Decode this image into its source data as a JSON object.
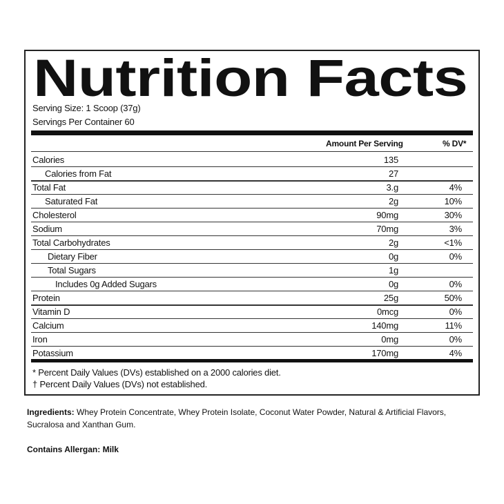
{
  "label": {
    "title": "Nutrition Facts",
    "serving_size": "Serving Size: 1 Scoop (37g)",
    "servings_per_container": "Servings Per Container 60",
    "columns": [
      "Amount Per Serving",
      "% DV*"
    ],
    "rows": [
      {
        "name": "Calories",
        "amount": "135"
      },
      {
        "name": "Calories from Fat",
        "amount": "27"
      },
      {
        "name": "Total Fat",
        "amount": "3.g",
        "dv": "4%"
      },
      {
        "name": "Saturated Fat",
        "amount": "2g",
        "dv": "10%"
      },
      {
        "name": "Cholesterol",
        "amount": "90mg",
        "dv": "30%"
      },
      {
        "name": "Sodium",
        "amount": "70mg",
        "dv": "3%"
      },
      {
        "name": "Total Carbohydrates",
        "amount": "2g",
        "dv": "<1%"
      },
      {
        "name": "Dietary Fiber",
        "amount": "0g",
        "dv": "0%"
      },
      {
        "name": "Total Sugars",
        "amount": "1g"
      },
      {
        "name": "Includes 0g Added Sugars",
        "amount": "0g",
        "dv": "0%"
      },
      {
        "name": "Protein",
        "amount": "25g",
        "dv": "50%"
      },
      {
        "name": "Vitamin D",
        "amount": "0mcg",
        "dv": "0%"
      },
      {
        "name": "Calcium",
        "amount": "140mg",
        "dv": "11%"
      },
      {
        "name": "Iron",
        "amount": "0mg",
        "dv": "0%"
      },
      {
        "name": "Potassium",
        "amount": "170mg",
        "dv": "4%"
      }
    ],
    "footnotes": [
      "* Percent Daily Values (DVs) established on a 2000 calories diet.",
      "† Percent Daily Values (DVs) not established."
    ]
  },
  "ingredients": {
    "label": "Ingredients:",
    "text": "Whey Protein Concentrate, Whey Protein Isolate, Coconut Water Powder, Natural & Artificial Flavors, Sucralosa and Xanthan Gum."
  },
  "allergen": {
    "label": "Contains Allergan:",
    "text": "Milk"
  }
}
